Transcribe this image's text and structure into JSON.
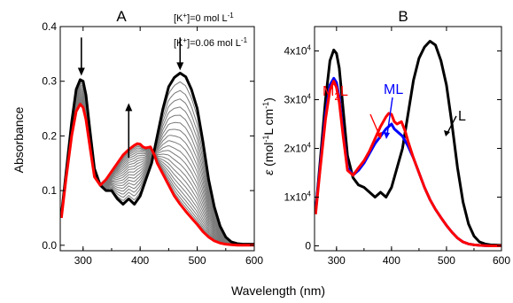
{
  "chart_data": [
    {
      "type": "line",
      "panel_label": "A",
      "xlabel": "Wavelength (nm)",
      "ylabel": "Absorbance",
      "xlim": [
        260,
        600
      ],
      "ylim": [
        -0.01,
        0.4
      ],
      "xticks": [
        300,
        400,
        500,
        600
      ],
      "yticks": [
        0.0,
        0.1,
        0.2,
        0.3,
        0.4
      ],
      "ytick_labels": [
        "0.0",
        "0.1",
        "0.2",
        "0.3",
        "0.4"
      ],
      "grid": false,
      "annotations": [
        {
          "base": "[K",
          "sup1": "+",
          "rest": "]=0 mol L",
          "sup2": "-1"
        },
        {
          "base": "[K",
          "sup1": "+",
          "rest": "]=0.06 mol L",
          "sup2": "-1"
        }
      ],
      "arrows": [
        {
          "x": 297,
          "direction": "down",
          "from": 0.38,
          "to": 0.31
        },
        {
          "x": 380,
          "direction": "up",
          "from": 0.16,
          "to": 0.26
        },
        {
          "x": 470,
          "direction": "down",
          "from": 0.38,
          "to": 0.32
        }
      ],
      "titration_curves": 22,
      "series": [
        {
          "role": "start",
          "color": "#000000",
          "x": [
            262,
            270,
            280,
            288,
            295,
            300,
            305,
            312,
            320,
            330,
            340,
            350,
            360,
            370,
            380,
            390,
            400,
            410,
            420,
            430,
            440,
            450,
            460,
            470,
            480,
            490,
            500,
            510,
            520,
            530,
            540,
            550,
            560,
            570,
            580,
            600
          ],
          "y": [
            0.055,
            0.13,
            0.225,
            0.285,
            0.303,
            0.3,
            0.275,
            0.21,
            0.14,
            0.11,
            0.1,
            0.1,
            0.085,
            0.075,
            0.085,
            0.075,
            0.09,
            0.12,
            0.15,
            0.2,
            0.25,
            0.29,
            0.307,
            0.315,
            0.308,
            0.285,
            0.25,
            0.19,
            0.12,
            0.07,
            0.035,
            0.015,
            0.006,
            0.003,
            0.002,
            0.002
          ]
        },
        {
          "role": "end",
          "color": "#ff0000",
          "x": [
            262,
            270,
            280,
            288,
            295,
            300,
            305,
            312,
            320,
            330,
            340,
            350,
            360,
            370,
            380,
            390,
            395,
            400,
            405,
            410,
            418,
            425,
            430,
            440,
            450,
            460,
            470,
            480,
            490,
            500,
            510,
            520,
            530,
            540,
            550,
            560,
            570,
            580,
            600
          ],
          "y": [
            0.05,
            0.12,
            0.2,
            0.245,
            0.258,
            0.252,
            0.23,
            0.18,
            0.125,
            0.11,
            0.12,
            0.135,
            0.15,
            0.165,
            0.175,
            0.183,
            0.186,
            0.185,
            0.18,
            0.178,
            0.18,
            0.165,
            0.15,
            0.13,
            0.11,
            0.09,
            0.075,
            0.062,
            0.05,
            0.038,
            0.025,
            0.015,
            0.008,
            0.004,
            0.002,
            0.001,
            0.0,
            0.0,
            0.0
          ]
        }
      ]
    },
    {
      "type": "line",
      "panel_label": "B",
      "ylabel_symbol": "ε",
      "ylabel_text": " (mol",
      "ylabel_sup1": "-1",
      "ylabel_text2": "L cm",
      "ylabel_sup2": "-1",
      "ylabel_text3": ")",
      "xlim": [
        260,
        600
      ],
      "ylim": [
        -1000,
        45000
      ],
      "xticks": [
        300,
        400,
        500,
        600
      ],
      "yticks": [
        0,
        10000,
        20000,
        30000,
        40000
      ],
      "ytick_labels": [
        {
          "base": "0",
          "sup": ""
        },
        {
          "base": "1x10",
          "sup": "4"
        },
        {
          "base": "2x10",
          "sup": "4"
        },
        {
          "base": "3x10",
          "sup": "4"
        },
        {
          "base": "4x10",
          "sup": "4"
        }
      ],
      "grid": false,
      "labels": [
        {
          "text": "L",
          "sub": "",
          "color": "#000000"
        },
        {
          "text": "ML",
          "sub": "",
          "color": "#0000ff"
        },
        {
          "text": "M",
          "sub": "2",
          "text2": "L",
          "color": "#ff0000"
        }
      ],
      "series": [
        {
          "name": "L",
          "color": "#000000",
          "x": [
            262,
            270,
            280,
            288,
            295,
            300,
            305,
            312,
            320,
            330,
            340,
            350,
            360,
            370,
            380,
            390,
            400,
            410,
            420,
            430,
            440,
            450,
            460,
            470,
            480,
            490,
            500,
            510,
            520,
            530,
            540,
            550,
            560,
            570,
            580,
            600
          ],
          "y": [
            7000,
            17000,
            30000,
            38000,
            40200,
            39500,
            36500,
            28000,
            18500,
            14000,
            12500,
            12000,
            11000,
            10000,
            11000,
            10000,
            12000,
            16000,
            20000,
            27000,
            34000,
            38500,
            40800,
            42000,
            41200,
            38000,
            33000,
            25000,
            16000,
            9000,
            4500,
            2000,
            800,
            400,
            200,
            100
          ]
        },
        {
          "name": "ML",
          "color": "#0000ff",
          "x": [
            262,
            270,
            280,
            288,
            295,
            300,
            305,
            312,
            320,
            330,
            340,
            350,
            360,
            370,
            380,
            390,
            400,
            405,
            410,
            420,
            430,
            440,
            450,
            460,
            470,
            480,
            490,
            500,
            510,
            520,
            530,
            540,
            550,
            560,
            570,
            580,
            600
          ],
          "y": [
            7000,
            16000,
            27000,
            33000,
            34400,
            33500,
            30500,
            23000,
            16000,
            14500,
            15500,
            17000,
            19000,
            21000,
            22500,
            24000,
            25000,
            24000,
            23500,
            22500,
            20500,
            18000,
            15000,
            12000,
            9500,
            7500,
            5800,
            4200,
            2800,
            1600,
            800,
            400,
            200,
            100,
            50,
            0,
            0
          ]
        },
        {
          "name": "M2L",
          "color": "#ff0000",
          "x": [
            262,
            270,
            280,
            288,
            295,
            300,
            305,
            312,
            320,
            330,
            340,
            350,
            360,
            370,
            380,
            390,
            395,
            400,
            405,
            410,
            418,
            425,
            430,
            440,
            450,
            460,
            470,
            480,
            490,
            500,
            510,
            520,
            530,
            540,
            550,
            560,
            570,
            580,
            600
          ],
          "y": [
            6500,
            15500,
            26000,
            32000,
            33800,
            32500,
            29500,
            22500,
            15500,
            14500,
            16000,
            17500,
            19500,
            22000,
            24500,
            26500,
            27200,
            27000,
            25500,
            25000,
            25500,
            23500,
            21500,
            18000,
            15000,
            12000,
            9500,
            7500,
            5800,
            4200,
            2800,
            1600,
            800,
            400,
            200,
            100,
            50,
            0,
            0
          ]
        }
      ]
    }
  ]
}
